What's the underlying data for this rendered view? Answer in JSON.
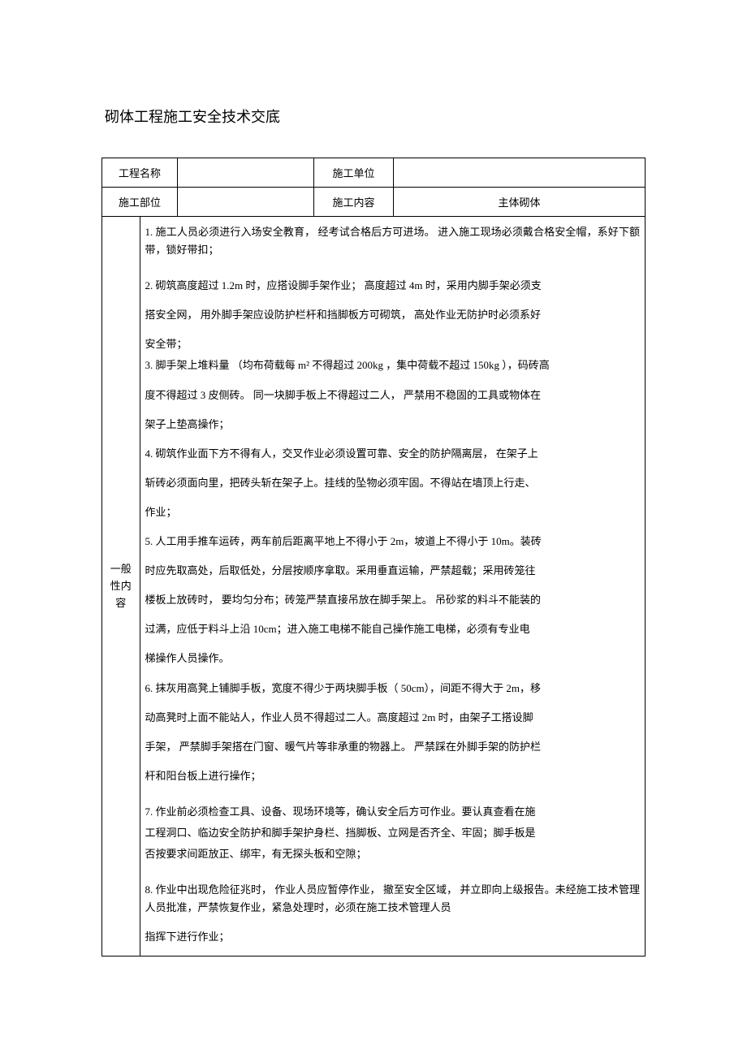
{
  "title": "砌体工程施工安全技术交底",
  "header": {
    "col1_label": "工程名称",
    "col1_value": "",
    "col2_label": "施工单位",
    "col2_value": "",
    "col3_label": "施工部位",
    "col3_value": "",
    "col4_label": "施工内容",
    "col4_value": "主体砌体"
  },
  "side_label": "一般性内容",
  "items": {
    "p1": "1. 施工人员必须进行入场安全教育，  经考试合格后方可进场。  进入施工现场必须戴合格安全帽，系好下额带，锁好带扣；",
    "p2a": "2. 砌筑高度超过  1.2m 时，应搭设脚手架作业；   高度超过  4m 时，采用内脚手架必须支",
    "p2b": "搭安全网，  用外脚手架应设防护栏杆和挡脚板方可砌筑，    高处作业无防护时必须系好",
    "p2c": "安全带；",
    "p3a": "3. 脚手架上堆料量  （均布荷载每  m² 不得超过  200kg ，集中荷载不超过   150kg ），码砖高",
    "p3b": "度不得超过   3 皮侧砖。  同一块脚手板上不得超过二人，    严禁用不稳固的工具或物体在",
    "p3c": "架子上垫高操作；",
    "p4a": "4. 砌筑作业面下方不得有人，交叉作业必须设置可靠、安全的防护隔离层，        在架子上",
    "p4b": "斩砖必须面向里，把砖头斩在架子上。挂线的坠物必须牢固。不得站在墙顶上行走、",
    "p4c": "作业；",
    "p5a": "5. 人工用手推车运砖，两车前后距离平地上不得小于      2m，坡道上不得小于  10m。装砖",
    "p5b": "时应先取高处，后取低处，分层按顺序拿取。采用垂直运输，严禁超载；采用砖笼往",
    "p5c": "楼板上放砖时，   要均匀分布；砖笼严禁直接吊放在脚手架上。     吊砂浆的料斗不能装的",
    "p5d": "过满，应低于料斗上沿     10cm；进入施工电梯不能自己操作施工电梯，必须有专业电",
    "p5e": "梯操作人员操作。",
    "p6a": "6. 抹灰用高凳上铺脚手板，宽度不得少于两块脚手板（      50cm），间距不得大于  2m，移",
    "p6b": "动高凳时上面不能站人，作业人员不得超过二人。高度超过        2m 时，由架子工搭设脚",
    "p6c": "手架，  严禁脚手架搭在门窗、暖气片等非承重的物器上。     严禁踩在外脚手架的防护栏",
    "p6d": "杆和阳台板上进行操作；",
    "p7a": "7. 作业前必须检查工具、设备、现场环境等，确认安全后方可作业。要认真查看在施",
    "p7b": "工程洞口、临边安全防护和脚手架护身栏、挡脚板、立网是否齐全、牢固；脚手板是",
    "p7c": "否按要求间距放正、绑牢，有无探头板和空隙；",
    "p8a": "8. 作业中出现危险征兆时，  作业人员应暂停作业，  撤至安全区域，  并立即向上级报告。未经施工技术管理人员批准，严禁恢复作业，紧急处理时，必须在施工技术管理人员",
    "p8b": "指挥下进行作业；"
  }
}
